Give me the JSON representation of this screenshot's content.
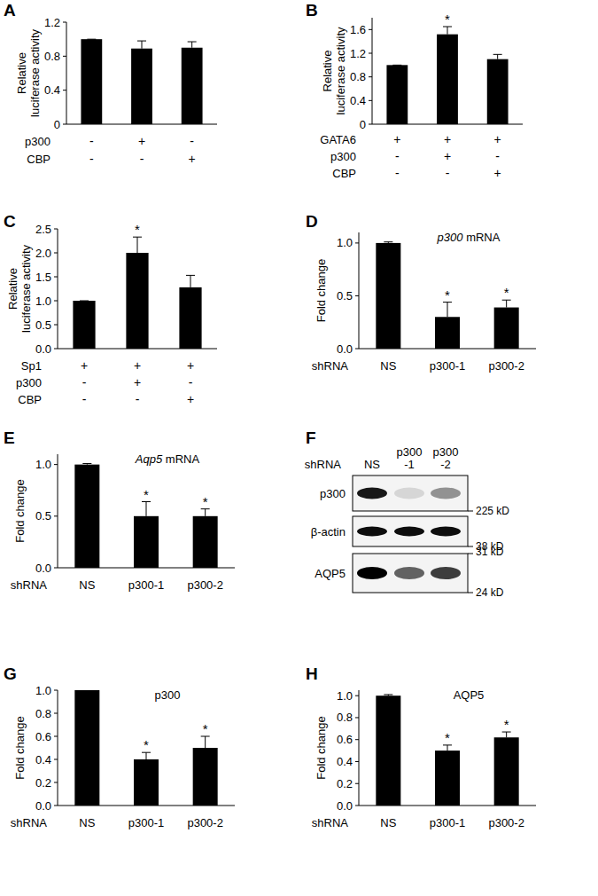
{
  "chart_data": [
    {
      "type": "bar",
      "panel": "A",
      "y_label": "Relative luciferase activity",
      "ylim": [
        0,
        1.2
      ],
      "yticks": [
        0,
        0.4,
        0.8,
        1.2
      ],
      "values": [
        1.0,
        0.89,
        0.9
      ],
      "errors": [
        0,
        0.09,
        0.07
      ],
      "significance": [
        null,
        null,
        null
      ],
      "color": "#000000",
      "conditions": [
        {
          "name": "p300",
          "values": [
            "-",
            "+",
            "-"
          ]
        },
        {
          "name": "CBP",
          "values": [
            "-",
            "-",
            "+"
          ]
        }
      ]
    },
    {
      "type": "bar",
      "panel": "B",
      "y_label": "Relative luciferase activity",
      "ylim": [
        0,
        1.8
      ],
      "yticks": [
        0,
        0.4,
        0.8,
        1.2,
        1.6
      ],
      "values": [
        1.0,
        1.52,
        1.1
      ],
      "errors": [
        0,
        0.13,
        0.08
      ],
      "significance": [
        null,
        "*",
        null
      ],
      "color": "#000000",
      "conditions": [
        {
          "name": "GATA6",
          "values": [
            "+",
            "+",
            "+"
          ]
        },
        {
          "name": "p300",
          "values": [
            "-",
            "+",
            "-"
          ]
        },
        {
          "name": "CBP",
          "values": [
            "-",
            "-",
            "+"
          ]
        }
      ]
    },
    {
      "type": "bar",
      "panel": "C",
      "y_label": "Relative luciferase activity",
      "ylim": [
        0,
        2.5
      ],
      "yticks": [
        {
          "value": 0,
          "label": "0.0"
        },
        0.5,
        {
          "value": 1,
          "label": "1.0"
        },
        1.5,
        {
          "value": 2,
          "label": "2.0"
        },
        2.5
      ],
      "values": [
        1.0,
        2.0,
        1.28
      ],
      "errors": [
        0,
        0.33,
        0.25
      ],
      "significance": [
        null,
        "*",
        null
      ],
      "color": "#000000",
      "conditions": [
        {
          "name": "Sp1",
          "values": [
            "+",
            "+",
            "+"
          ]
        },
        {
          "name": "p300",
          "values": [
            "-",
            "+",
            "-"
          ]
        },
        {
          "name": "CBP",
          "values": [
            "-",
            "-",
            "+"
          ]
        }
      ]
    },
    {
      "type": "bar",
      "panel": "D",
      "title": "p300 mRNA",
      "y_label": "Fold change",
      "x_label": "shRNA",
      "ylim": [
        0,
        1.1
      ],
      "yticks": [
        {
          "value": 0,
          "label": "0.0"
        },
        0.5,
        {
          "value": 1,
          "label": "1.0"
        }
      ],
      "categories": [
        "NS",
        "p300-1",
        "p300-2"
      ],
      "values": [
        1.0,
        0.3,
        0.39
      ],
      "errors": [
        0.01,
        0.14,
        0.07
      ],
      "significance": [
        null,
        "*",
        "*"
      ],
      "color": "#000000"
    },
    {
      "type": "bar",
      "panel": "E",
      "title": "Aqp5 mRNA",
      "y_label": "Fold change",
      "x_label": "shRNA",
      "ylim": [
        0,
        1.1
      ],
      "yticks": [
        {
          "value": 0,
          "label": "0.0"
        },
        0.5,
        {
          "value": 1,
          "label": "1.0"
        }
      ],
      "categories": [
        "NS",
        "p300-1",
        "p300-2"
      ],
      "values": [
        1.0,
        0.5,
        0.5
      ],
      "errors": [
        0.01,
        0.14,
        0.07
      ],
      "significance": [
        null,
        "*",
        "*"
      ],
      "color": "#000000"
    },
    {
      "type": "bar",
      "panel": "G",
      "title": "p300",
      "y_label": "Fold change",
      "x_label": "shRNA",
      "ylim": [
        0,
        1.0
      ],
      "yticks": [
        {
          "value": 0,
          "label": "0.0"
        },
        0.2,
        0.4,
        0.6,
        0.8,
        {
          "value": 1,
          "label": "1.0"
        }
      ],
      "categories": [
        "NS",
        "p300-1",
        "p300-2"
      ],
      "values": [
        1.0,
        0.4,
        0.5
      ],
      "errors": [
        0,
        0.06,
        0.1
      ],
      "significance": [
        null,
        "*",
        "*"
      ],
      "color": "#000000"
    },
    {
      "type": "bar",
      "panel": "H",
      "title": "AQP5",
      "y_label": "Fold change",
      "x_label": "shRNA",
      "ylim": [
        0,
        1.05
      ],
      "yticks": [
        {
          "value": 0,
          "label": "0.0"
        },
        0.2,
        0.4,
        0.6,
        0.8,
        {
          "value": 1,
          "label": "1.0"
        }
      ],
      "categories": [
        "NS",
        "p300-1",
        "p300-2"
      ],
      "values": [
        1.0,
        0.5,
        0.62
      ],
      "errors": [
        0.01,
        0.05,
        0.05
      ],
      "significance": [
        null,
        "*",
        "*"
      ],
      "color": "#000000"
    }
  ],
  "blot": {
    "panel": "F",
    "x_label": "shRNA",
    "lanes": [
      [
        "NS"
      ],
      [
        "p300",
        "-1"
      ],
      [
        "p300",
        "-2"
      ]
    ],
    "rows": [
      {
        "name": "p300",
        "intensity": [
          0.9,
          0.12,
          0.4
        ],
        "marker_bottom": "225 kD"
      },
      {
        "name": "β-actin",
        "intensity": [
          0.95,
          0.95,
          0.95
        ],
        "marker_bottom": "38 kD"
      },
      {
        "name": "AQP5",
        "intensity": [
          1.0,
          0.6,
          0.75
        ],
        "marker_top": "31 kD",
        "marker_bottom": "24 kD"
      }
    ]
  }
}
